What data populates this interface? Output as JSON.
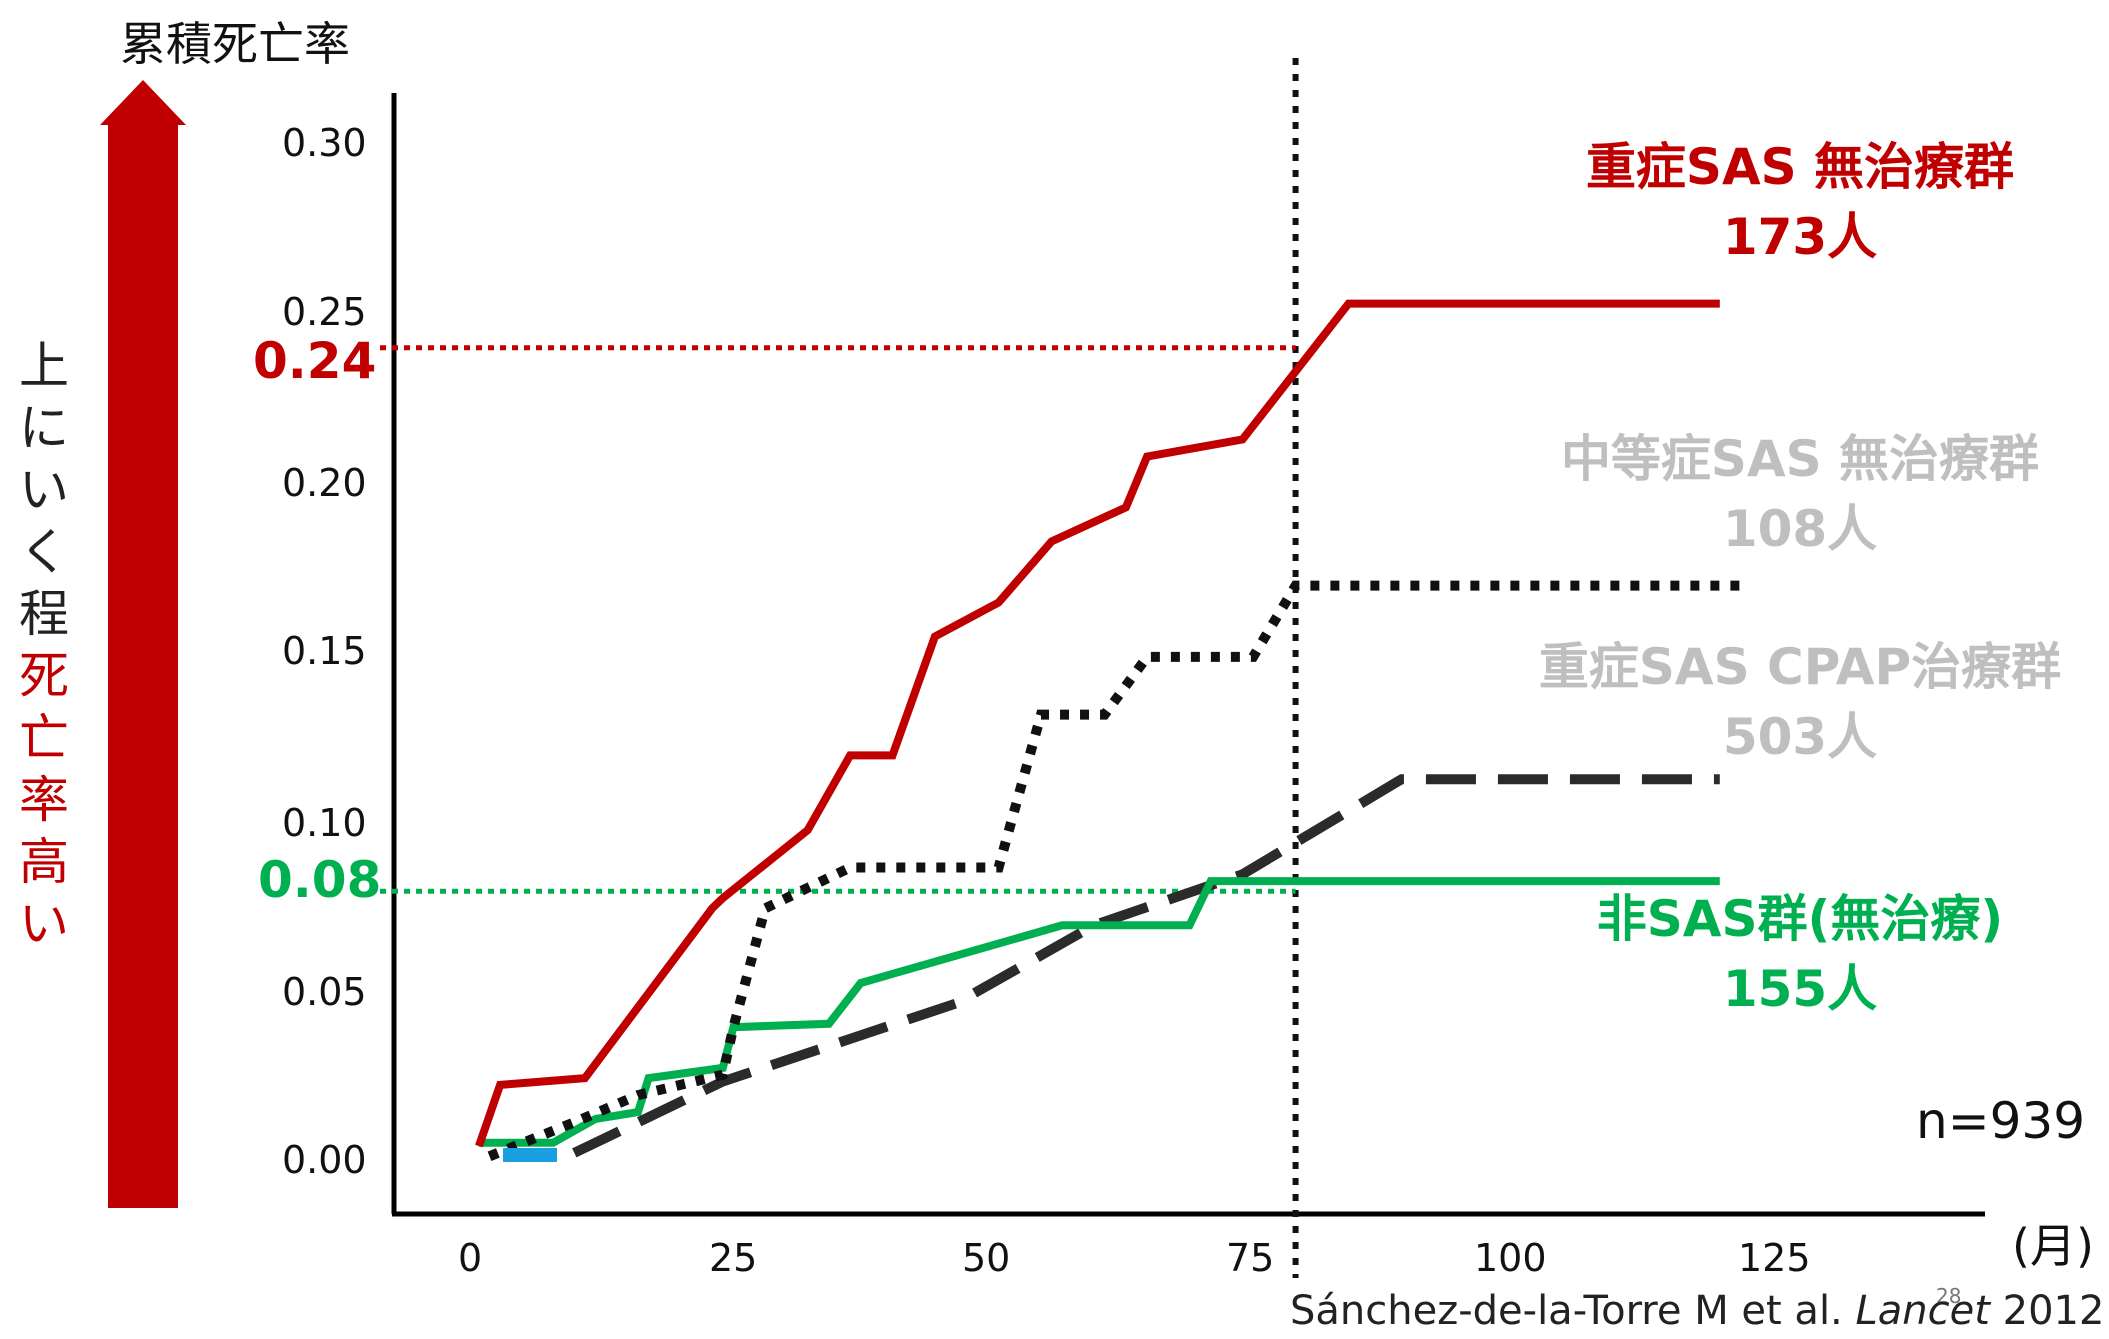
{
  "y_axis_title": "累積死亡率",
  "arrow_label": {
    "black": [
      "上",
      "に",
      "い",
      "く",
      "程"
    ],
    "red": [
      "死",
      "亡",
      "率",
      "高",
      "い"
    ]
  },
  "x_unit": "(月)",
  "highlights": {
    "red": "0.24",
    "green": "0.08"
  },
  "legend": {
    "severe": {
      "name": "重症SAS 無治療群",
      "count": "173人"
    },
    "moderate": {
      "name": "中等症SAS 無治療群",
      "count": "108人"
    },
    "cpap": {
      "name": "重症SAS CPAP治療群",
      "count": "503人"
    },
    "non": {
      "name": "非SAS群(無治療)",
      "count": "155人"
    }
  },
  "n_label": "n=939",
  "citation": {
    "authors": "Sánchez-de-la-Torre M et al. ",
    "journal": "Lancet",
    "year": " 2012"
  },
  "page_number": "28",
  "colors": {
    "severe": "#c00000",
    "moderate": "#111111",
    "cpap": "#2b2b2b",
    "non": "#00b050",
    "muted": "#bfbfbf",
    "arrow": "#c00000",
    "blue_mark": "#1aa0e0"
  },
  "chart_data": {
    "type": "line",
    "xlabel": "(月)",
    "ylabel": "累積死亡率",
    "x_ticks": [
      "0",
      "25",
      "50",
      "75",
      "100",
      "125"
    ],
    "y_ticks": [
      "0.00",
      "0.05",
      "0.10",
      "0.15",
      "0.20",
      "0.25",
      "0.30"
    ],
    "xlim": [
      -5,
      145
    ],
    "ylim": [
      -0.015,
      0.315
    ],
    "reference_lines": {
      "x": 80,
      "y_red": 0.24,
      "y_green": 0.08
    },
    "series": [
      {
        "name": "重症SAS 無治療群",
        "style": "solid",
        "x": [
          3,
          5,
          13,
          25,
          26,
          34,
          38,
          42,
          46,
          52,
          57,
          64,
          66,
          75,
          85,
          120
        ],
        "y": [
          0.005,
          0.023,
          0.025,
          0.075,
          0.078,
          0.098,
          0.12,
          0.12,
          0.155,
          0.165,
          0.183,
          0.193,
          0.208,
          0.213,
          0.253,
          0.253
        ]
      },
      {
        "name": "中等症SAS 無治療群",
        "style": "dotted",
        "x": [
          4,
          12,
          18,
          26,
          27,
          30,
          38,
          47,
          52,
          56,
          60,
          62,
          66,
          74,
          76,
          80,
          122
        ],
        "y": [
          0.002,
          0.012,
          0.02,
          0.026,
          0.04,
          0.075,
          0.087,
          0.087,
          0.087,
          0.132,
          0.132,
          0.132,
          0.149,
          0.149,
          0.149,
          0.17,
          0.17
        ]
      },
      {
        "name": "重症SAS CPAP治療群",
        "style": "dashed",
        "x": [
          12,
          26,
          48,
          61,
          75,
          90,
          120
        ],
        "y": [
          0.003,
          0.024,
          0.047,
          0.07,
          0.085,
          0.113,
          0.113
        ]
      },
      {
        "name": "非SAS群(無治療)",
        "style": "solid",
        "x": [
          3,
          10,
          14,
          18,
          19,
          26,
          27,
          36,
          39,
          58,
          70,
          72,
          120
        ],
        "y": [
          0.006,
          0.006,
          0.013,
          0.015,
          0.025,
          0.028,
          0.04,
          0.041,
          0.053,
          0.07,
          0.07,
          0.083,
          0.083
        ]
      }
    ]
  }
}
